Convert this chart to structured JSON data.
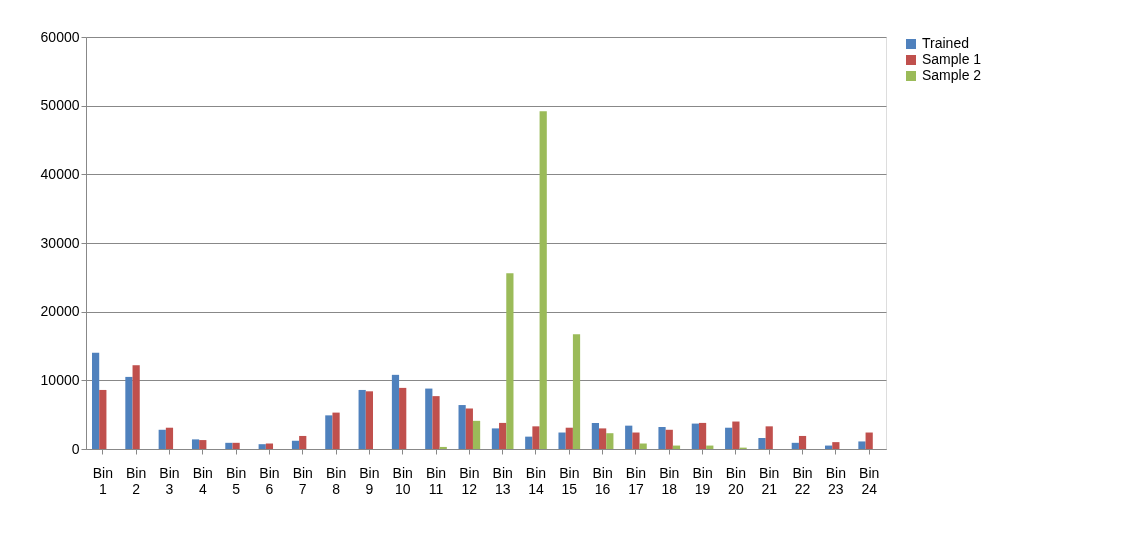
{
  "chart_data": {
    "type": "bar",
    "categories": [
      "Bin 1",
      "Bin 2",
      "Bin 3",
      "Bin 4",
      "Bin 5",
      "Bin 6",
      "Bin 7",
      "Bin 8",
      "Bin 9",
      "Bin 10",
      "Bin 11",
      "Bin 12",
      "Bin 13",
      "Bin 14",
      "Bin 15",
      "Bin 16",
      "Bin 17",
      "Bin 18",
      "Bin 19",
      "Bin 20",
      "Bin 21",
      "Bin 22",
      "Bin 23",
      "Bin 24"
    ],
    "series": [
      {
        "name": "Trained",
        "color": "#4f81bd",
        "values": [
          14000,
          10500,
          2800,
          1400,
          900,
          700,
          1200,
          4900,
          8600,
          10800,
          8800,
          6400,
          3000,
          1800,
          2400,
          3800,
          3400,
          3200,
          3700,
          3100,
          1600,
          900,
          500,
          1100
        ]
      },
      {
        "name": "Sample 1",
        "color": "#c0504d",
        "values": [
          8600,
          12200,
          3100,
          1300,
          900,
          800,
          1900,
          5300,
          8400,
          8900,
          7700,
          5900,
          3800,
          3300,
          3100,
          3000,
          2400,
          2800,
          3800,
          4000,
          3300,
          1900,
          1000,
          2400
        ]
      },
      {
        "name": "Sample 2",
        "color": "#9bbb59",
        "values": [
          0,
          0,
          0,
          0,
          0,
          0,
          0,
          0,
          0,
          0,
          300,
          4100,
          25600,
          49200,
          16700,
          2300,
          800,
          500,
          500,
          200,
          0,
          0,
          0,
          0
        ]
      }
    ],
    "ylim": [
      0,
      60000
    ],
    "yticks": [
      0,
      10000,
      20000,
      30000,
      40000,
      50000,
      60000
    ],
    "grid": "y",
    "legend": "right"
  }
}
